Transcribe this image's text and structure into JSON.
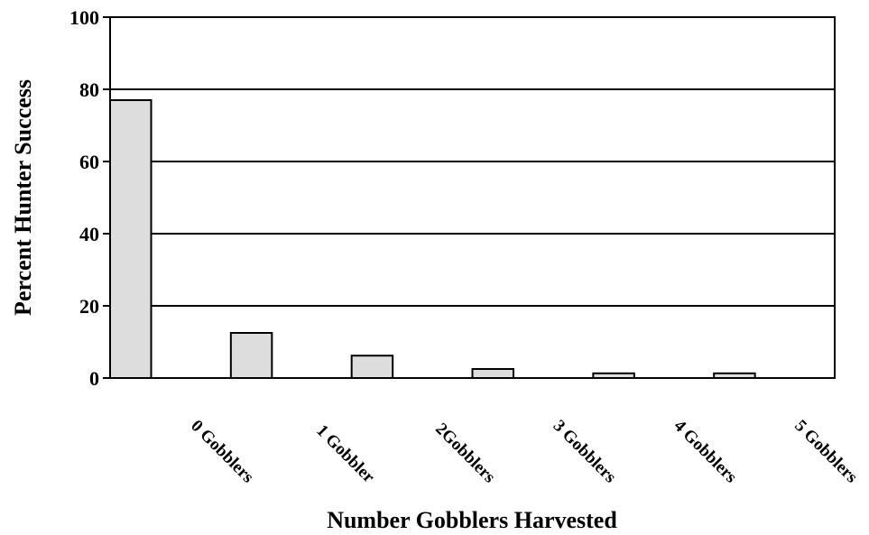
{
  "chart_data": {
    "type": "bar",
    "title": "",
    "xlabel": "Number Gobblers Harvested",
    "ylabel": "Percent Hunter Success",
    "categories": [
      "0 Gobblers",
      "1 Gobbler",
      "2Gobblers",
      "3 Gobblers",
      "4 Gobblers",
      "5 Gobblers"
    ],
    "values": [
      77,
      12.5,
      6.2,
      2.5,
      1.3,
      1.3
    ],
    "ylim": [
      0,
      100
    ],
    "yticks": [
      0,
      20,
      40,
      60,
      80,
      100
    ],
    "grid": true,
    "legend": "none",
    "bar_color": "#dddddd",
    "edge_color": "#000000"
  }
}
